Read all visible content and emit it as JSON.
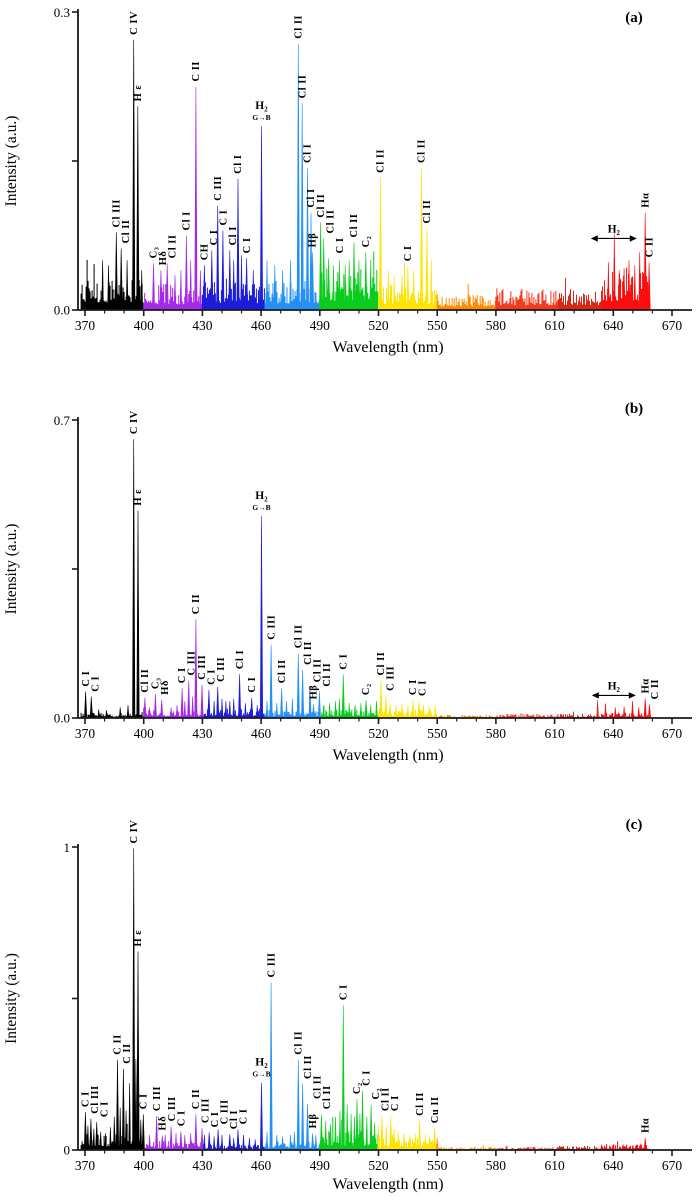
{
  "chart_data": {
    "type": "line",
    "title": "",
    "xlabel": "Wavelength (nm)",
    "ylabel": "Intensity (a.u.)",
    "x_ticks": [
      370,
      400,
      430,
      460,
      490,
      520,
      550,
      580,
      610,
      640,
      670
    ],
    "x_minor_step": 10,
    "x_data_range": [
      368,
      658.5
    ],
    "legend": "none",
    "grid": false,
    "segments": [
      {
        "from": 368,
        "to": 400,
        "color": "#000000"
      },
      {
        "from": 400,
        "to": 430,
        "color": "#A429E8"
      },
      {
        "from": 430,
        "to": 462,
        "color": "#1C1CD9"
      },
      {
        "from": 462,
        "to": 490,
        "color": "#2490F5"
      },
      {
        "from": 490,
        "to": 520,
        "color": "#0ACC1E"
      },
      {
        "from": 520,
        "to": 550,
        "color": "#FFE400"
      },
      {
        "from": 550,
        "to": 580,
        "color": "#FF8C00"
      },
      {
        "from": 580,
        "to": 612,
        "color": "#F23B1E"
      },
      {
        "from": 612,
        "to": 634,
        "color": "#D92914"
      },
      {
        "from": 634,
        "to": 658.6,
        "color": "#FC0D0D"
      }
    ],
    "panels": [
      {
        "tag": "(a)",
        "ymax": 0.3,
        "ytick_labels": [
          "0.0",
          "0.3"
        ],
        "noise": [
          0.032,
          0.026,
          0.03,
          0.03,
          0.042,
          0.028,
          0.016,
          0.022,
          0.022,
          0.04
        ],
        "peaks": [
          {
            "w": 386.0,
            "h": 0.078,
            "l": "Cl III"
          },
          {
            "w": 388.5,
            "h": 0.062,
            "l": "Cl II"
          },
          {
            "w": 394.9,
            "h": 0.272,
            "l": "C IV"
          },
          {
            "w": 397.0,
            "h": 0.205,
            "l": "H ε"
          },
          {
            "w": 405.0,
            "h": 0.047,
            "l": "C₃"
          },
          {
            "w": 408.8,
            "h": 0.04,
            "l": "Hδ"
          },
          {
            "w": 412.0,
            "h": 0.047,
            "l": "Cl II"
          },
          {
            "w": 421.8,
            "h": 0.075,
            "l": "Cl I"
          },
          {
            "w": 426.7,
            "h": 0.225,
            "l": "C II"
          },
          {
            "w": 431.0,
            "h": 0.045,
            "l": "CH"
          },
          {
            "w": 434.8,
            "h": 0.06,
            "l": "C I"
          },
          {
            "w": 437.8,
            "h": 0.105,
            "l": "C III"
          },
          {
            "w": 440.5,
            "h": 0.08,
            "l": "C I"
          },
          {
            "w": 444.0,
            "h": 0.06,
            "l": "Cl I"
          },
          {
            "w": 448.2,
            "h": 0.132,
            "l": "Cl I"
          },
          {
            "w": 452.6,
            "h": 0.052,
            "l": "C I"
          },
          {
            "w": 479.0,
            "h": 0.268,
            "l": "Cl II"
          },
          {
            "w": 481.0,
            "h": 0.208,
            "l": "Cl II"
          },
          {
            "w": 483.7,
            "h": 0.143,
            "l": "Cl I"
          },
          {
            "w": 485.5,
            "h": 0.098,
            "l": "Cl I"
          },
          {
            "w": 486.3,
            "h": 0.058,
            "l": "Hβ"
          },
          {
            "w": 490.4,
            "h": 0.088,
            "l": "Cl II"
          },
          {
            "w": 492.0,
            "h": 0.072,
            "l": "Cl II"
          },
          {
            "w": 494.5,
            "h": 0.052,
            "l": "C I"
          },
          {
            "w": 507.5,
            "h": 0.068,
            "l": "Cl II"
          },
          {
            "w": 513.5,
            "h": 0.058,
            "l": "C₂"
          },
          {
            "w": 521.0,
            "h": 0.133,
            "l": "Cl II"
          },
          {
            "w": 535.0,
            "h": 0.044,
            "l": "C I"
          },
          {
            "w": 542.0,
            "h": 0.143,
            "l": "Cl II"
          },
          {
            "w": 544.8,
            "h": 0.082,
            "l": "Cl II"
          },
          {
            "w": 656.3,
            "h": 0.098,
            "l": "Hα"
          },
          {
            "w": 658.3,
            "h": 0.048,
            "l": "C II"
          }
        ],
        "h2_peak": {
          "w": 460.2,
          "h": 0.185,
          "label": "H₂",
          "sub": "G→B"
        },
        "h2_band": {
          "label": "H₂",
          "from": 628.5,
          "to": 652,
          "y": 0.072
        },
        "minor_peaks": [
          [
            379,
            0.05
          ],
          [
            382,
            0.045
          ],
          [
            391.5,
            0.05
          ],
          [
            399,
            0.04
          ],
          [
            416,
            0.035
          ],
          [
            419,
            0.04
          ],
          [
            424,
            0.05
          ],
          [
            429,
            0.04
          ],
          [
            446,
            0.05
          ],
          [
            450,
            0.055
          ],
          [
            456,
            0.04
          ],
          [
            463,
            0.05
          ],
          [
            467,
            0.045
          ],
          [
            471,
            0.04
          ],
          [
            475,
            0.05
          ],
          [
            497,
            0.045
          ],
          [
            500,
            0.05
          ],
          [
            503,
            0.045
          ],
          [
            505,
            0.05
          ],
          [
            510,
            0.05
          ],
          [
            516,
            0.05
          ],
          [
            525,
            0.04
          ],
          [
            528,
            0.035
          ],
          [
            532,
            0.035
          ],
          [
            538,
            0.04
          ],
          [
            547,
            0.05
          ],
          [
            637.5,
            0.048
          ],
          [
            640.5,
            0.078
          ],
          [
            643,
            0.04
          ],
          [
            645.5,
            0.042
          ],
          [
            648,
            0.05
          ],
          [
            651,
            0.045
          ],
          [
            653.5,
            0.058
          ]
        ]
      },
      {
        "tag": "(b)",
        "ymax": 0.7,
        "ytick_labels": [
          "0.0",
          "0.7"
        ],
        "noise": [
          0.012,
          0.018,
          0.022,
          0.018,
          0.02,
          0.02,
          0.008,
          0.01,
          0.01,
          0.014
        ],
        "peaks": [
          {
            "w": 370.3,
            "h": 0.062,
            "l": "C I"
          },
          {
            "w": 373.2,
            "h": 0.05,
            "l": "C I"
          },
          {
            "w": 394.9,
            "h": 0.655,
            "l": "C IV"
          },
          {
            "w": 397.1,
            "h": 0.487,
            "l": "H ε"
          },
          {
            "w": 400.6,
            "h": 0.048,
            "l": "Cl II"
          },
          {
            "w": 406.0,
            "h": 0.056,
            "l": "C₃"
          },
          {
            "w": 409.2,
            "h": 0.043,
            "l": "Hδ"
          },
          {
            "w": 419.6,
            "h": 0.07,
            "l": "C I"
          },
          {
            "w": 423.0,
            "h": 0.088,
            "l": "C III"
          },
          {
            "w": 426.7,
            "h": 0.232,
            "l": "C II"
          },
          {
            "w": 429.8,
            "h": 0.078,
            "l": "C III"
          },
          {
            "w": 433.3,
            "h": 0.066,
            "l": "C I"
          },
          {
            "w": 437.8,
            "h": 0.073,
            "l": "C III"
          },
          {
            "w": 449.0,
            "h": 0.103,
            "l": "Cl I"
          },
          {
            "w": 455.2,
            "h": 0.048,
            "l": "C I"
          },
          {
            "w": 465.1,
            "h": 0.172,
            "l": "C III"
          },
          {
            "w": 470.5,
            "h": 0.07,
            "l": "Cl II"
          },
          {
            "w": 479.0,
            "h": 0.152,
            "l": "Cl II"
          },
          {
            "w": 481.2,
            "h": 0.113,
            "l": "Cl II"
          },
          {
            "w": 485.0,
            "h": 0.072,
            "l": "Cl II"
          },
          {
            "w": 486.8,
            "h": 0.032,
            "l": "Hβ"
          },
          {
            "w": 489.8,
            "h": 0.062,
            "l": "Cl II"
          },
          {
            "w": 502.0,
            "h": 0.102,
            "l": "C I"
          },
          {
            "w": 513.6,
            "h": 0.042,
            "l": "C₂"
          },
          {
            "w": 521.3,
            "h": 0.088,
            "l": "Cl II"
          },
          {
            "w": 523.8,
            "h": 0.052,
            "l": "C III"
          },
          {
            "w": 537.6,
            "h": 0.042,
            "l": "C I"
          },
          {
            "w": 540.6,
            "h": 0.04,
            "l": "C I"
          },
          {
            "w": 656.3,
            "h": 0.046,
            "l": "Hα"
          },
          {
            "w": 658.5,
            "h": 0.032,
            "l": "C II"
          }
        ],
        "h2_peak": {
          "w": 460.2,
          "h": 0.475,
          "label": "H₂",
          "sub": "G→B"
        },
        "h2_band": {
          "label": "H₂",
          "from": 629,
          "to": 651.5,
          "y": 0.053
        },
        "minor_peaks": [
          [
            377,
            0.02
          ],
          [
            381,
            0.018
          ],
          [
            388,
            0.025
          ],
          [
            392,
            0.03
          ],
          [
            403,
            0.025
          ],
          [
            414,
            0.025
          ],
          [
            417,
            0.03
          ],
          [
            421,
            0.04
          ],
          [
            425,
            0.05
          ],
          [
            436,
            0.04
          ],
          [
            440,
            0.045
          ],
          [
            442,
            0.04
          ],
          [
            444,
            0.04
          ],
          [
            446,
            0.045
          ],
          [
            452,
            0.035
          ],
          [
            458,
            0.03
          ],
          [
            463,
            0.04
          ],
          [
            468,
            0.035
          ],
          [
            473,
            0.04
          ],
          [
            476,
            0.045
          ],
          [
            492,
            0.03
          ],
          [
            495,
            0.035
          ],
          [
            498,
            0.04
          ],
          [
            500,
            0.045
          ],
          [
            505,
            0.035
          ],
          [
            508,
            0.03
          ],
          [
            511,
            0.035
          ],
          [
            516,
            0.03
          ],
          [
            519,
            0.04
          ],
          [
            526,
            0.035
          ],
          [
            529,
            0.03
          ],
          [
            532,
            0.035
          ],
          [
            535,
            0.03
          ],
          [
            543,
            0.03
          ],
          [
            546,
            0.028
          ],
          [
            549,
            0.03
          ],
          [
            632,
            0.042
          ],
          [
            636,
            0.034
          ],
          [
            641,
            0.025
          ],
          [
            645.5,
            0.027
          ],
          [
            649.8,
            0.04
          ],
          [
            653,
            0.025
          ]
        ]
      },
      {
        "tag": "(c)",
        "ymax": 1,
        "ytick_labels": [
          "0",
          "1"
        ],
        "noise": [
          0.055,
          0.03,
          0.02,
          0.028,
          0.065,
          0.04,
          0.01,
          0.01,
          0.014,
          0.018
        ],
        "peaks": [
          {
            "w": 370.2,
            "h": 0.125,
            "l": "C I"
          },
          {
            "w": 373.0,
            "h": 0.103,
            "l": "Cl III"
          },
          {
            "w": 376.0,
            "h": 0.092,
            "l": "C I"
          },
          {
            "w": 386.6,
            "h": 0.298,
            "l": "C II"
          },
          {
            "w": 389.6,
            "h": 0.268,
            "l": "C II"
          },
          {
            "w": 394.9,
            "h": 0.995,
            "l": "C IV"
          },
          {
            "w": 397.1,
            "h": 0.655,
            "l": "H ε"
          },
          {
            "w": 399.8,
            "h": 0.118,
            "l": "C I"
          },
          {
            "w": 406.6,
            "h": 0.112,
            "l": "C III"
          },
          {
            "w": 409.5,
            "h": 0.048,
            "l": "Hδ"
          },
          {
            "w": 414.0,
            "h": 0.078,
            "l": "C III"
          },
          {
            "w": 419.0,
            "h": 0.062,
            "l": "C I"
          },
          {
            "w": 426.7,
            "h": 0.118,
            "l": "C II"
          },
          {
            "w": 429.8,
            "h": 0.072,
            "l": "C III"
          },
          {
            "w": 433.5,
            "h": 0.058,
            "l": "C I"
          },
          {
            "w": 438.0,
            "h": 0.068,
            "l": "C III"
          },
          {
            "w": 444.0,
            "h": 0.052,
            "l": "Cl I"
          },
          {
            "w": 448.2,
            "h": 0.068,
            "l": "C I"
          },
          {
            "w": 465.1,
            "h": 0.553,
            "l": "C III"
          },
          {
            "w": 479.0,
            "h": 0.298,
            "l": "Cl II"
          },
          {
            "w": 481.2,
            "h": 0.218,
            "l": "Cl II"
          },
          {
            "w": 483.7,
            "h": 0.152,
            "l": "Cl II"
          },
          {
            "w": 486.3,
            "h": 0.055,
            "l": "Hβ"
          },
          {
            "w": 490.8,
            "h": 0.118,
            "l": "Cl II"
          },
          {
            "w": 502.0,
            "h": 0.478,
            "l": "C I"
          },
          {
            "w": 509.0,
            "h": 0.168,
            "l": "C₂"
          },
          {
            "w": 511.8,
            "h": 0.195,
            "l": "C I"
          },
          {
            "w": 516.2,
            "h": 0.15,
            "l": "C₂"
          },
          {
            "w": 521.8,
            "h": 0.112,
            "l": "Cl II"
          },
          {
            "w": 526.3,
            "h": 0.112,
            "l": "C I"
          },
          {
            "w": 541.0,
            "h": 0.096,
            "l": "Cl II"
          },
          {
            "w": 548.7,
            "h": 0.072,
            "l": "Cu II"
          },
          {
            "w": 656.3,
            "h": 0.04,
            "l": "Hα"
          }
        ],
        "h2_peak": {
          "w": 460.2,
          "h": 0.222,
          "label": "H₂",
          "sub": "G→B"
        },
        "h2_band": null,
        "minor_peaks": [
          [
            371.5,
            0.08
          ],
          [
            374.5,
            0.07
          ],
          [
            378,
            0.06
          ],
          [
            380.5,
            0.055
          ],
          [
            383,
            0.075
          ],
          [
            385,
            0.11
          ],
          [
            388,
            0.14
          ],
          [
            391,
            0.13
          ],
          [
            392.8,
            0.22
          ],
          [
            396,
            0.3
          ],
          [
            398.5,
            0.1
          ],
          [
            403,
            0.05
          ],
          [
            411,
            0.05
          ],
          [
            416.5,
            0.055
          ],
          [
            421,
            0.05
          ],
          [
            424,
            0.055
          ],
          [
            431,
            0.05
          ],
          [
            436,
            0.045
          ],
          [
            440,
            0.05
          ],
          [
            446,
            0.04
          ],
          [
            451,
            0.05
          ],
          [
            454,
            0.04
          ],
          [
            457,
            0.035
          ],
          [
            463,
            0.06
          ],
          [
            468,
            0.05
          ],
          [
            471,
            0.045
          ],
          [
            475,
            0.05
          ],
          [
            477,
            0.06
          ],
          [
            488,
            0.05
          ],
          [
            493,
            0.095
          ],
          [
            495.5,
            0.085
          ],
          [
            498,
            0.11
          ],
          [
            500.3,
            0.13
          ],
          [
            504,
            0.15
          ],
          [
            506,
            0.12
          ],
          [
            507.7,
            0.11
          ],
          [
            510.5,
            0.12
          ],
          [
            514,
            0.11
          ],
          [
            518,
            0.09
          ],
          [
            520,
            0.08
          ],
          [
            524,
            0.08
          ],
          [
            528,
            0.07
          ],
          [
            530,
            0.06
          ],
          [
            533,
            0.055
          ],
          [
            536,
            0.05
          ],
          [
            539,
            0.055
          ],
          [
            544,
            0.05
          ],
          [
            546,
            0.045
          ],
          [
            550,
            0.04
          ],
          [
            634,
            0.018
          ],
          [
            640,
            0.02
          ],
          [
            645,
            0.018
          ],
          [
            650,
            0.016
          ],
          [
            654,
            0.02
          ]
        ]
      }
    ]
  }
}
